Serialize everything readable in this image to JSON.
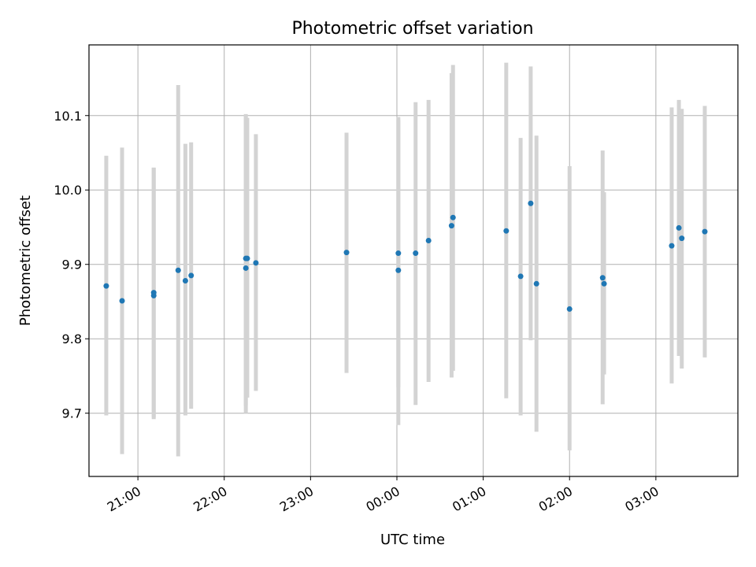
{
  "chart_data": {
    "type": "scatter",
    "title": "Photometric offset variation",
    "xlabel": "UTC time",
    "ylabel": "Photometric offset",
    "x_axis_kind": "time",
    "x_tick_labels": [
      "21:00",
      "22:00",
      "23:00",
      "00:00",
      "01:00",
      "02:00",
      "03:00"
    ],
    "y_tick_values": [
      9.7,
      9.8,
      9.9,
      10.0,
      10.1
    ],
    "y_tick_labels": [
      "9.7",
      "9.8",
      "9.9",
      "10.0",
      "10.1"
    ],
    "xlim": [
      "20:26",
      "03:57"
    ],
    "ylim": [
      9.615,
      10.195
    ],
    "grid": true,
    "error_bars": true,
    "colors": {
      "point": "#1f77b4",
      "error_bar": "#d3d3d3",
      "grid": "#b0b0b0"
    },
    "points": [
      {
        "x": "20:38",
        "y": 9.871,
        "yerr_low": 9.697,
        "yerr_high": 10.046
      },
      {
        "x": "20:49",
        "y": 9.851,
        "yerr_low": 9.645,
        "yerr_high": 10.057
      },
      {
        "x": "21:11",
        "y": 9.858,
        "yerr_low": 9.692,
        "yerr_high": 10.03
      },
      {
        "x": "21:11",
        "y": 9.862,
        "yerr_low": 9.694,
        "yerr_high": 10.03
      },
      {
        "x": "21:28",
        "y": 9.892,
        "yerr_low": 9.642,
        "yerr_high": 10.141
      },
      {
        "x": "21:33",
        "y": 9.878,
        "yerr_low": 9.697,
        "yerr_high": 10.062
      },
      {
        "x": "21:37",
        "y": 9.885,
        "yerr_low": 9.706,
        "yerr_high": 10.064
      },
      {
        "x": "22:15",
        "y": 9.895,
        "yerr_low": 9.7,
        "yerr_high": 10.102
      },
      {
        "x": "22:15",
        "y": 9.908,
        "yerr_low": 9.71,
        "yerr_high": 10.1
      },
      {
        "x": "22:16",
        "y": 9.908,
        "yerr_low": 9.721,
        "yerr_high": 10.097
      },
      {
        "x": "22:22",
        "y": 9.902,
        "yerr_low": 9.73,
        "yerr_high": 10.075
      },
      {
        "x": "23:25",
        "y": 9.916,
        "yerr_low": 9.754,
        "yerr_high": 10.077
      },
      {
        "x": "00:01",
        "y": 9.892,
        "yerr_low": 9.684,
        "yerr_high": 10.098
      },
      {
        "x": "00:01",
        "y": 9.915,
        "yerr_low": 9.735,
        "yerr_high": 10.094
      },
      {
        "x": "00:13",
        "y": 9.915,
        "yerr_low": 9.711,
        "yerr_high": 10.118
      },
      {
        "x": "00:22",
        "y": 9.932,
        "yerr_low": 9.742,
        "yerr_high": 10.121
      },
      {
        "x": "00:38",
        "y": 9.952,
        "yerr_low": 9.748,
        "yerr_high": 10.157
      },
      {
        "x": "00:39",
        "y": 9.963,
        "yerr_low": 9.757,
        "yerr_high": 10.168
      },
      {
        "x": "01:16",
        "y": 9.945,
        "yerr_low": 9.72,
        "yerr_high": 10.171
      },
      {
        "x": "01:26",
        "y": 9.884,
        "yerr_low": 9.697,
        "yerr_high": 10.07
      },
      {
        "x": "01:33",
        "y": 9.982,
        "yerr_low": 9.798,
        "yerr_high": 10.166
      },
      {
        "x": "01:37",
        "y": 9.874,
        "yerr_low": 9.675,
        "yerr_high": 10.073
      },
      {
        "x": "02:00",
        "y": 9.84,
        "yerr_low": 9.65,
        "yerr_high": 10.032
      },
      {
        "x": "02:23",
        "y": 9.882,
        "yerr_low": 9.712,
        "yerr_high": 10.053
      },
      {
        "x": "02:24",
        "y": 9.874,
        "yerr_low": 9.752,
        "yerr_high": 9.997
      },
      {
        "x": "03:11",
        "y": 9.925,
        "yerr_low": 9.74,
        "yerr_high": 10.111
      },
      {
        "x": "03:16",
        "y": 9.949,
        "yerr_low": 9.777,
        "yerr_high": 10.121
      },
      {
        "x": "03:18",
        "y": 9.935,
        "yerr_low": 9.76,
        "yerr_high": 10.109
      },
      {
        "x": "03:34",
        "y": 9.944,
        "yerr_low": 9.775,
        "yerr_high": 10.113
      }
    ]
  }
}
